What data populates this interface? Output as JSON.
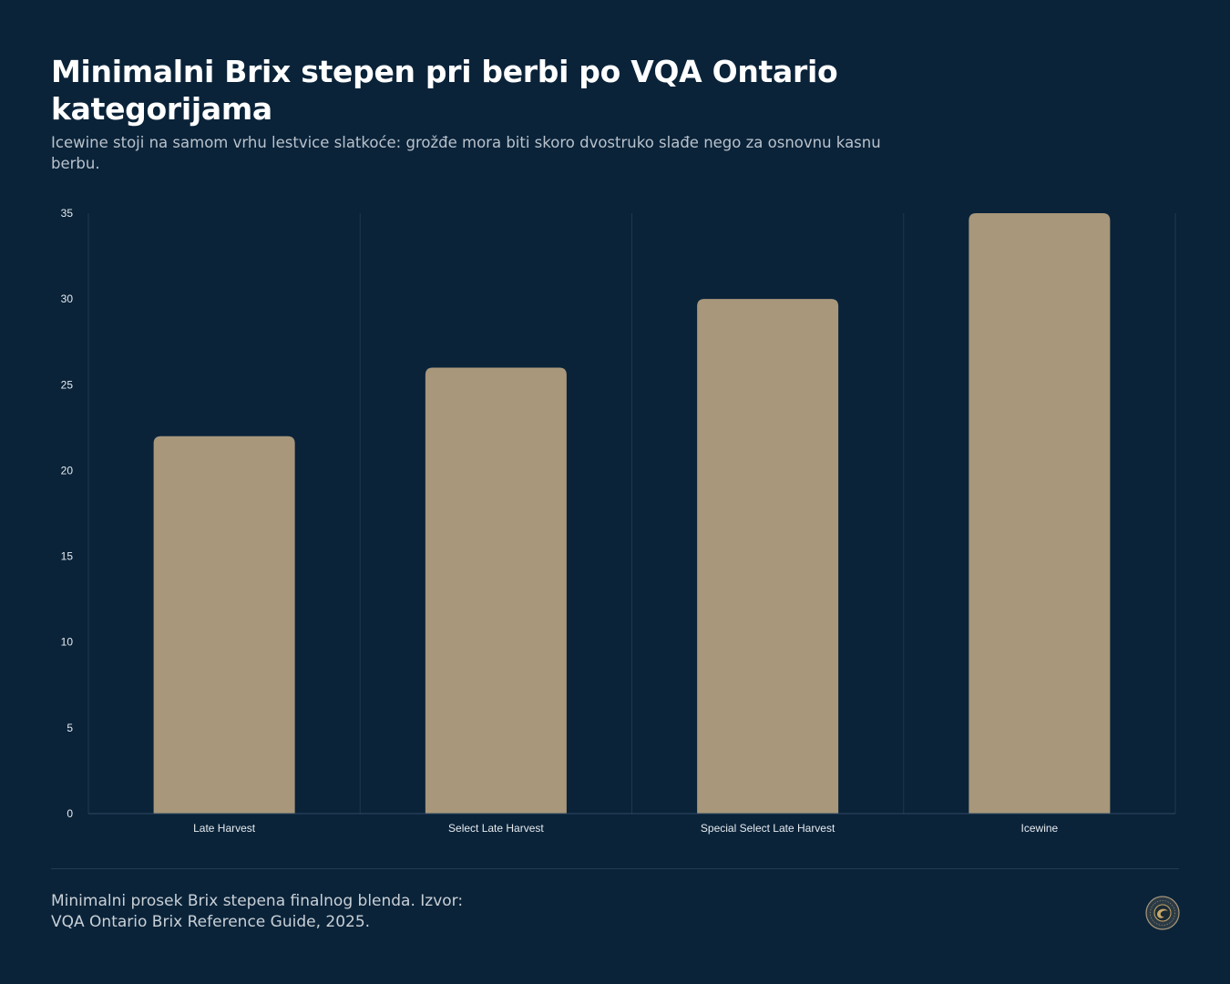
{
  "header": {
    "title": "Minimalni Brix stepen pri berbi po VQA Ontario kategorijama",
    "subtitle": "Icewine stoji na samom vrhu lestvice slatkoće: grožđe mora biti skoro dvostruko slađe nego za osnovnu kasnu berbu."
  },
  "footer": {
    "line1": "Minimalni prosek Brix stepena finalnog blenda. Izvor:",
    "line2": "VQA Ontario Brix Reference Guide, 2025.",
    "logo_icon": "vineyard-seal-icon"
  },
  "colors": {
    "background": "#0a2339",
    "bar": "#a8977b",
    "grid": "#1e3850",
    "axis": "#2f4a62"
  },
  "chart_data": {
    "type": "bar",
    "categories": [
      "Late Harvest",
      "Select Late Harvest",
      "Special Select Late Harvest",
      "Icewine"
    ],
    "values": [
      22,
      26,
      30,
      35
    ],
    "title": "Minimalni Brix stepen pri berbi po VQA Ontario kategorijama",
    "xlabel": "",
    "ylabel": "",
    "ylim": [
      0,
      35
    ],
    "yticks": [
      0,
      5,
      10,
      15,
      20,
      25,
      30,
      35
    ],
    "grid": "vertical-category-separators",
    "legend": "none"
  }
}
